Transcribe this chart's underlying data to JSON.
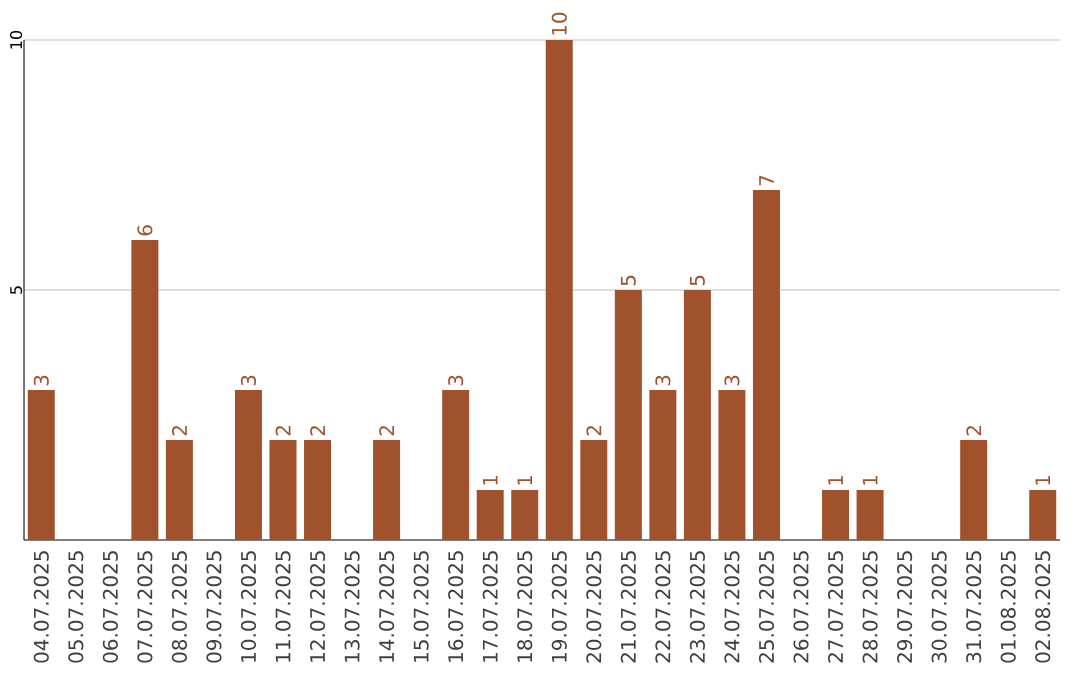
{
  "chart_data": {
    "type": "bar",
    "categories": [
      "04.07.2025",
      "05.07.2025",
      "06.07.2025",
      "07.07.2025",
      "08.07.2025",
      "09.07.2025",
      "10.07.2025",
      "11.07.2025",
      "12.07.2025",
      "13.07.2025",
      "14.07.2025",
      "15.07.2025",
      "16.07.2025",
      "17.07.2025",
      "18.07.2025",
      "19.07.2025",
      "20.07.2025",
      "21.07.2025",
      "22.07.2025",
      "23.07.2025",
      "24.07.2025",
      "25.07.2025",
      "26.07.2025",
      "27.07.2025",
      "28.07.2025",
      "29.07.2025",
      "30.07.2025",
      "31.07.2025",
      "01.08.2025",
      "02.08.2025"
    ],
    "values": [
      3,
      0,
      0,
      6,
      2,
      0,
      3,
      2,
      2,
      0,
      2,
      0,
      3,
      1,
      1,
      10,
      2,
      5,
      3,
      5,
      3,
      7,
      0,
      1,
      1,
      0,
      0,
      2,
      0,
      1
    ],
    "value_labels": [
      "3",
      null,
      null,
      "6",
      "2",
      null,
      "3",
      "2",
      "2",
      null,
      "2",
      null,
      "3",
      "1",
      "1",
      "10",
      "2",
      "5",
      "3",
      "5",
      "3",
      "7",
      null,
      "1",
      "1",
      null,
      null,
      "2",
      null,
      "1"
    ],
    "color": "#a0522d",
    "ylim": [
      0,
      10
    ],
    "yticks": [
      5,
      10
    ],
    "grid": "y"
  }
}
